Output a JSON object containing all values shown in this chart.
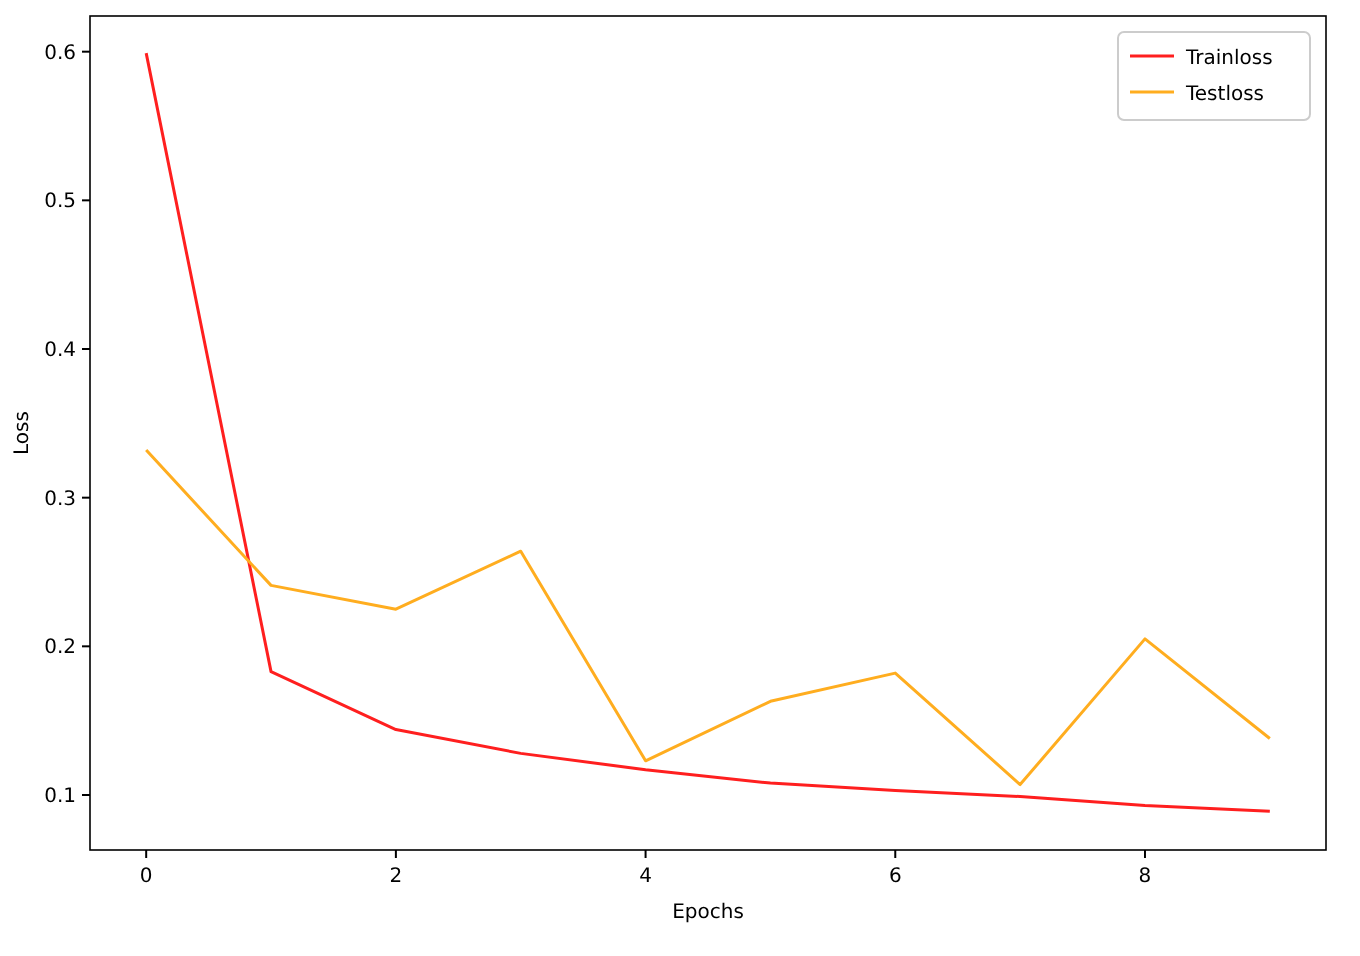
{
  "chart_data": {
    "type": "line",
    "xlabel": "Epochs",
    "ylabel": "Loss",
    "x": [
      0,
      1,
      2,
      3,
      4,
      5,
      6,
      7,
      8,
      9
    ],
    "series": [
      {
        "name": "Trainloss",
        "color": "#ff1f1f",
        "values": [
          0.599,
          0.183,
          0.144,
          0.128,
          0.117,
          0.108,
          0.103,
          0.099,
          0.093,
          0.089
        ]
      },
      {
        "name": "Testloss",
        "color": "#ffad1f",
        "values": [
          0.332,
          0.241,
          0.225,
          0.264,
          0.123,
          0.163,
          0.182,
          0.107,
          0.205,
          0.138
        ]
      }
    ],
    "xlim": [
      -0.45,
      9.45
    ],
    "xticks": [
      0,
      2,
      4,
      6,
      8
    ],
    "ylim": [
      0.063,
      0.624
    ],
    "yticks": [
      0.1,
      0.2,
      0.3,
      0.4,
      0.5,
      0.6
    ],
    "legend": "top right",
    "grid": false
  }
}
